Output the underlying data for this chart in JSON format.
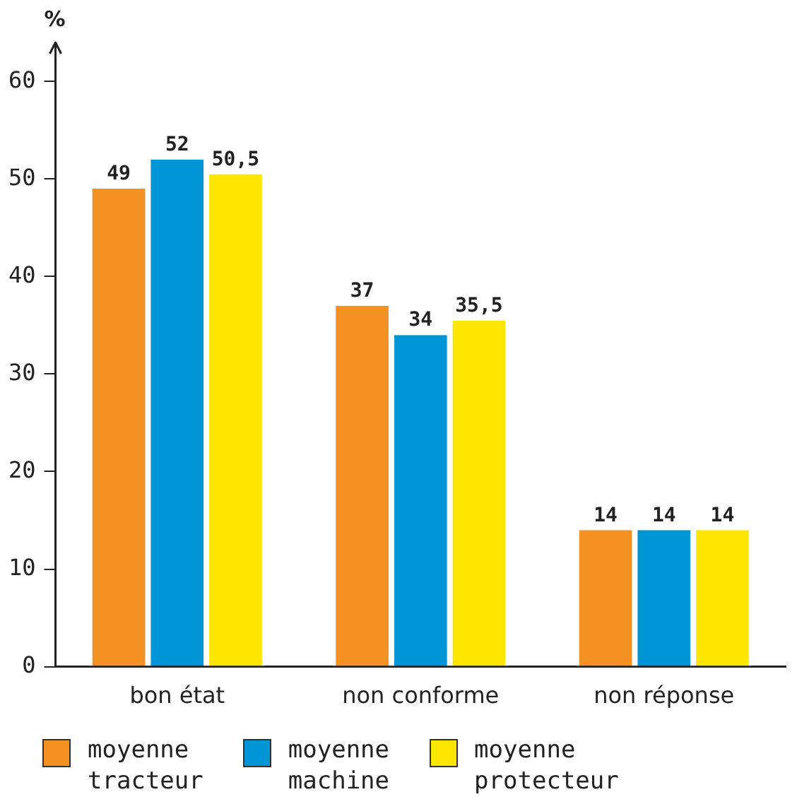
{
  "chart_data": {
    "type": "bar",
    "ylabel": "%",
    "categories": [
      "bon état",
      "non conforme",
      "non réponse"
    ],
    "series": [
      {
        "name": "moyenne tracteur",
        "color": "#f39223",
        "values": [
          49,
          37,
          14
        ],
        "value_labels": [
          "49",
          "37",
          "14"
        ]
      },
      {
        "name": "moyenne machine",
        "color": "#0095d5",
        "values": [
          52,
          34,
          14
        ],
        "value_labels": [
          "52",
          "34",
          "14"
        ]
      },
      {
        "name": "moyenne protecteur",
        "color": "#ffe600",
        "values": [
          50.5,
          35.5,
          14
        ],
        "value_labels": [
          "50,5",
          "35,5",
          "14"
        ]
      }
    ],
    "ylim": [
      0,
      64
    ],
    "yticks": [
      0,
      10,
      20,
      30,
      40,
      50,
      60
    ],
    "grid": false,
    "legend": "bottom"
  }
}
